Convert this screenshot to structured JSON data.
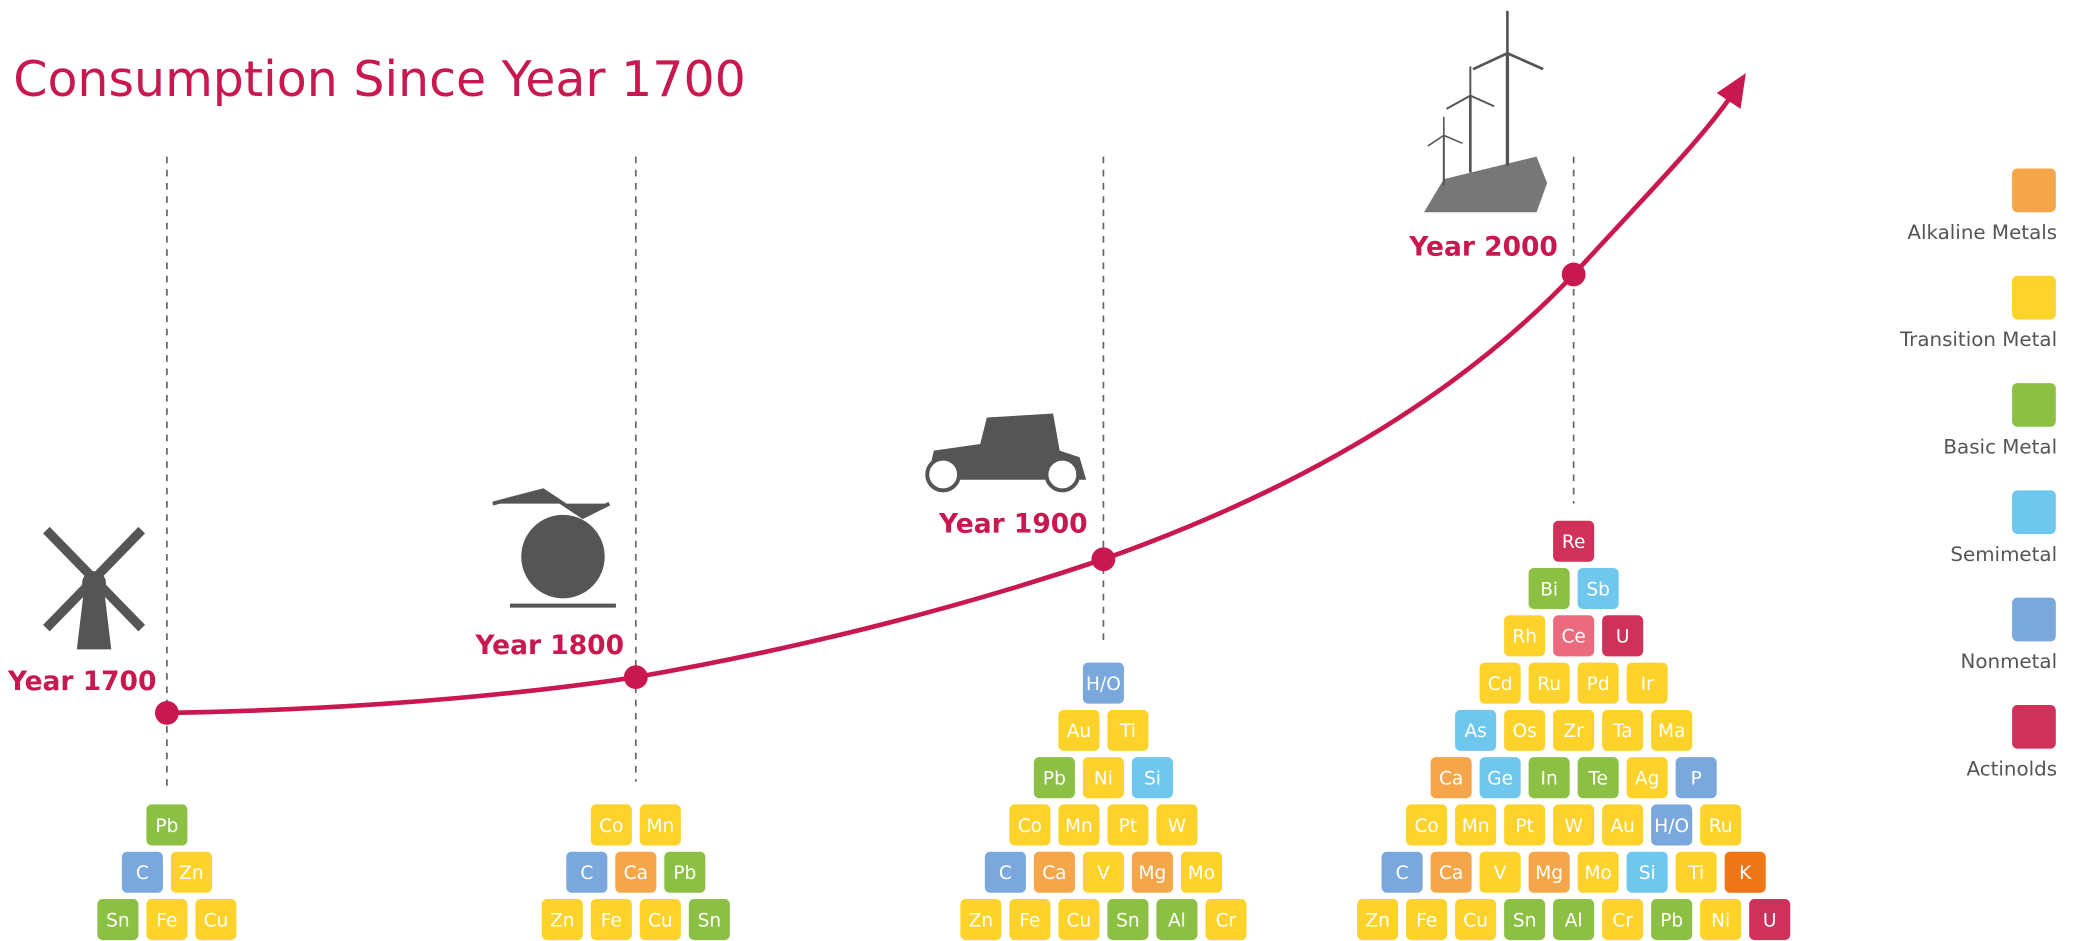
{
  "title": "Consumption Since Year 1700",
  "milestones": [
    {
      "label": "Year 1700",
      "rows": [
        [
          {
            "symbol": "Pb",
            "color": "#8cc045"
          }
        ],
        [
          {
            "symbol": "C",
            "color": "#7aa7dc"
          },
          {
            "symbol": "Zn",
            "color": "#fdd22a"
          }
        ],
        [
          {
            "symbol": "Sn",
            "color": "#8cc045"
          },
          {
            "symbol": "Fe",
            "color": "#fdd22a"
          },
          {
            "symbol": "Cu",
            "color": "#fdd22a"
          }
        ]
      ]
    },
    {
      "label": "Year 1800",
      "rows": [
        [
          {
            "symbol": "Co",
            "color": "#fdd22a"
          },
          {
            "symbol": "Mn",
            "color": "#fdd22a"
          }
        ],
        [
          {
            "symbol": "C",
            "color": "#7aa7dc"
          },
          {
            "symbol": "Ca",
            "color": "#f5a54a"
          },
          {
            "symbol": "Pb",
            "color": "#8cc045"
          }
        ],
        [
          {
            "symbol": "Zn",
            "color": "#fdd22a"
          },
          {
            "symbol": "Fe",
            "color": "#fdd22a"
          },
          {
            "symbol": "Cu",
            "color": "#fdd22a"
          },
          {
            "symbol": "Sn",
            "color": "#8cc045"
          }
        ]
      ]
    },
    {
      "label": "Year 1900",
      "rows": [
        [
          {
            "symbol": "H/O",
            "color": "#7aa7dc"
          }
        ],
        [
          {
            "symbol": "Au",
            "color": "#fdd22a"
          },
          {
            "symbol": "Ti",
            "color": "#fdd22a"
          }
        ],
        [
          {
            "symbol": "Pb",
            "color": "#8cc045"
          },
          {
            "symbol": "Ni",
            "color": "#fdd22a"
          },
          {
            "symbol": "Si",
            "color": "#6fc7ee"
          }
        ],
        [
          {
            "symbol": "Co",
            "color": "#fdd22a"
          },
          {
            "symbol": "Mn",
            "color": "#fdd22a"
          },
          {
            "symbol": "Pt",
            "color": "#fdd22a"
          },
          {
            "symbol": "W",
            "color": "#fdd22a"
          }
        ],
        [
          {
            "symbol": "C",
            "color": "#7aa7dc"
          },
          {
            "symbol": "Ca",
            "color": "#f5a54a"
          },
          {
            "symbol": "V",
            "color": "#fdd22a"
          },
          {
            "symbol": "Mg",
            "color": "#f5a54a"
          },
          {
            "symbol": "Mo",
            "color": "#fdd22a"
          }
        ],
        [
          {
            "symbol": "Zn",
            "color": "#fdd22a"
          },
          {
            "symbol": "Fe",
            "color": "#fdd22a"
          },
          {
            "symbol": "Cu",
            "color": "#fdd22a"
          },
          {
            "symbol": "Sn",
            "color": "#8cc045"
          },
          {
            "symbol": "Al",
            "color": "#8cc045"
          },
          {
            "symbol": "Cr",
            "color": "#fdd22a"
          }
        ]
      ]
    },
    {
      "label": "Year 2000",
      "rows": [
        [
          {
            "symbol": "Re",
            "color": "#d0315a"
          }
        ],
        [
          {
            "symbol": "Bi",
            "color": "#8cc045"
          },
          {
            "symbol": "Sb",
            "color": "#6fc7ee"
          }
        ],
        [
          {
            "symbol": "Rh",
            "color": "#fdd22a"
          },
          {
            "symbol": "Ce",
            "color": "#ec6a7d"
          },
          {
            "symbol": "U",
            "color": "#d0315a"
          }
        ],
        [
          {
            "symbol": "Cd",
            "color": "#fdd22a"
          },
          {
            "symbol": "Ru",
            "color": "#fdd22a"
          },
          {
            "symbol": "Pd",
            "color": "#fdd22a"
          },
          {
            "symbol": "Ir",
            "color": "#fdd22a"
          }
        ],
        [
          {
            "symbol": "As",
            "color": "#6fc7ee"
          },
          {
            "symbol": "Os",
            "color": "#fdd22a"
          },
          {
            "symbol": "Zr",
            "color": "#fdd22a"
          },
          {
            "symbol": "Ta",
            "color": "#fdd22a"
          },
          {
            "symbol": "Ma",
            "color": "#fdd22a"
          }
        ],
        [
          {
            "symbol": "Ca",
            "color": "#f5a54a"
          },
          {
            "symbol": "Ge",
            "color": "#6fc7ee"
          },
          {
            "symbol": "In",
            "color": "#8cc045"
          },
          {
            "symbol": "Te",
            "color": "#8cc045"
          },
          {
            "symbol": "Ag",
            "color": "#fdd22a"
          },
          {
            "symbol": "P",
            "color": "#7aa7dc"
          }
        ],
        [
          {
            "symbol": "Co",
            "color": "#fdd22a"
          },
          {
            "symbol": "Mn",
            "color": "#fdd22a"
          },
          {
            "symbol": "Pt",
            "color": "#fdd22a"
          },
          {
            "symbol": "W",
            "color": "#fdd22a"
          },
          {
            "symbol": "Au",
            "color": "#fdd22a"
          },
          {
            "symbol": "H/O",
            "color": "#7aa7dc"
          },
          {
            "symbol": "Ru",
            "color": "#fdd22a"
          }
        ],
        [
          {
            "symbol": "C",
            "color": "#7aa7dc"
          },
          {
            "symbol": "Ca",
            "color": "#f5a54a"
          },
          {
            "symbol": "V",
            "color": "#fdd22a"
          },
          {
            "symbol": "Mg",
            "color": "#f5a54a"
          },
          {
            "symbol": "Mo",
            "color": "#fdd22a"
          },
          {
            "symbol": "Si",
            "color": "#6fc7ee"
          },
          {
            "symbol": "Ti",
            "color": "#fdd22a"
          },
          {
            "symbol": "K",
            "color": "#ee7518"
          }
        ],
        [
          {
            "symbol": "Zn",
            "color": "#fdd22a"
          },
          {
            "symbol": "Fe",
            "color": "#fdd22a"
          },
          {
            "symbol": "Cu",
            "color": "#fdd22a"
          },
          {
            "symbol": "Sn",
            "color": "#8cc045"
          },
          {
            "symbol": "Al",
            "color": "#8cc045"
          },
          {
            "symbol": "Cr",
            "color": "#fdd22a"
          },
          {
            "symbol": "Pb",
            "color": "#8cc045"
          },
          {
            "symbol": "Ni",
            "color": "#fdd22a"
          },
          {
            "symbol": "U",
            "color": "#d0315a"
          }
        ]
      ]
    }
  ],
  "legend": [
    {
      "label": "Alkaline Metals",
      "color": "#f5a54a"
    },
    {
      "label": "Transition Metal",
      "color": "#fdd22a"
    },
    {
      "label": "Basic Metal",
      "color": "#8cc045"
    },
    {
      "label": "Semimetal",
      "color": "#6fc7ee"
    },
    {
      "label": "Nonmetal",
      "color": "#7aa7dc"
    },
    {
      "label": "Actinolds",
      "color": "#d0315a"
    }
  ]
}
